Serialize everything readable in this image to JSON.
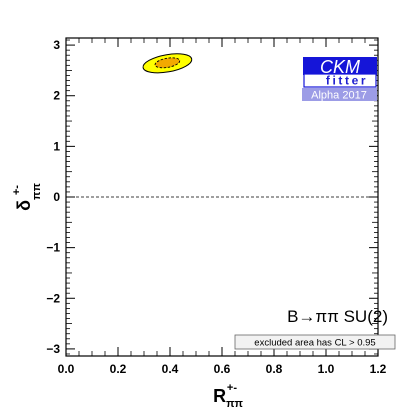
{
  "chart_data": {
    "type": "contour",
    "x_label": {
      "main": "R",
      "sup": "+-",
      "sub": "ππ"
    },
    "y_label": {
      "main": "δ",
      "sup": "+-",
      "sub": "ππ"
    },
    "xlim": [
      0.0,
      1.2
    ],
    "ylim": [
      -3.14,
      3.14
    ],
    "x_ticks": [
      0.0,
      0.2,
      0.4,
      0.6,
      0.8,
      1.0,
      1.2
    ],
    "x_tick_labels": [
      "0.0",
      "0.2",
      "0.4",
      "0.6",
      "0.8",
      "1.0",
      "1.2"
    ],
    "y_ticks": [
      -3,
      -2,
      -1,
      0,
      1,
      2,
      3
    ],
    "y_tick_labels": [
      "−3",
      "−2",
      "−1",
      "0",
      "1",
      "2",
      "3"
    ],
    "reference_line_y": 0,
    "regions": [
      {
        "level": "outer",
        "center": [
          0.39,
          2.64
        ],
        "rx": 0.095,
        "ry": 0.17,
        "tilt_deg": 8,
        "fill": "#ffff00",
        "stroke": "#000000"
      },
      {
        "level": "inner",
        "center": [
          0.39,
          2.65
        ],
        "rx": 0.048,
        "ry": 0.09,
        "tilt_deg": 8,
        "fill": "#f2a900",
        "stroke": "#000000",
        "dashed": true
      }
    ],
    "process_label": "B→ππ SU(2)",
    "excluded_note": "excluded area has CL > 0.95"
  },
  "logo": {
    "main": "CKM",
    "sub": "fitter",
    "year": "Alpha 2017",
    "colors": {
      "main_bg": "#1515d8",
      "year_bg": "#9c9ce6",
      "sub_text": "#1f1fd0"
    }
  }
}
